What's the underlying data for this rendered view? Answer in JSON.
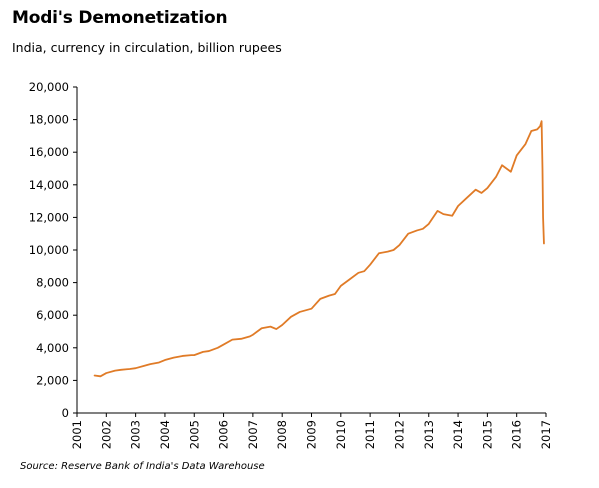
{
  "header": {
    "title": "Modi's Demonetization",
    "subtitle": "India, currency in circulation, billion rupees"
  },
  "footer": {
    "source": "Source: Reserve Bank of India's Data Warehouse"
  },
  "chart_data": {
    "type": "line",
    "title": "Modi's Demonetization",
    "subtitle": "India, currency in circulation, billion rupees",
    "xlabel": "",
    "ylabel": "",
    "xlim": [
      2001,
      2017
    ],
    "ylim": [
      0,
      20000
    ],
    "yticks": [
      0,
      2000,
      4000,
      6000,
      8000,
      10000,
      12000,
      14000,
      16000,
      18000,
      20000
    ],
    "ytick_labels": [
      "0",
      "2,000",
      "4,000",
      "6,000",
      "8,000",
      "10,000",
      "12,000",
      "14,000",
      "16,000",
      "18,000",
      "20,000"
    ],
    "xticks": [
      2001,
      2002,
      2003,
      2004,
      2005,
      2006,
      2007,
      2008,
      2009,
      2010,
      2011,
      2012,
      2013,
      2014,
      2015,
      2016,
      2017
    ],
    "xtick_labels": [
      "2001",
      "2002",
      "2003",
      "2004",
      "2005",
      "2006",
      "2007",
      "2008",
      "2009",
      "2010",
      "2011",
      "2012",
      "2013",
      "2014",
      "2015",
      "2016",
      "2017"
    ],
    "grid": false,
    "line_color": "#E07B27",
    "series": [
      {
        "x": [
          2001.6,
          2001.8,
          2002.0,
          2002.3,
          2002.5,
          2002.8,
          2003.0,
          2003.3,
          2003.5,
          2003.8,
          2004.0,
          2004.3,
          2004.6,
          2004.9,
          2005.0,
          2005.3,
          2005.5,
          2005.8,
          2006.0,
          2006.3,
          2006.6,
          2006.9,
          2007.0,
          2007.3,
          2007.6,
          2007.8,
          2008.0,
          2008.3,
          2008.6,
          2008.8,
          2009.0,
          2009.3,
          2009.6,
          2009.8,
          2010.0,
          2010.3,
          2010.6,
          2010.8,
          2011.0,
          2011.3,
          2011.6,
          2011.8,
          2012.0,
          2012.3,
          2012.6,
          2012.8,
          2013.0,
          2013.3,
          2013.5,
          2013.8,
          2014.0,
          2014.3,
          2014.6,
          2014.8,
          2015.0,
          2015.3,
          2015.5,
          2015.8,
          2016.0,
          2016.3,
          2016.5,
          2016.7,
          2016.8,
          2016.85,
          2016.88,
          2016.9,
          2016.93
        ],
        "y": [
          2300,
          2250,
          2450,
          2600,
          2650,
          2700,
          2750,
          2900,
          3000,
          3100,
          3250,
          3400,
          3500,
          3550,
          3550,
          3750,
          3800,
          4000,
          4200,
          4500,
          4550,
          4700,
          4800,
          5200,
          5300,
          5150,
          5400,
          5900,
          6200,
          6300,
          6400,
          7000,
          7200,
          7300,
          7800,
          8200,
          8600,
          8700,
          9100,
          9800,
          9900,
          10000,
          10300,
          11000,
          11200,
          11300,
          11600,
          12400,
          12200,
          12100,
          12700,
          13200,
          13700,
          13500,
          13800,
          14500,
          15200,
          14800,
          15800,
          16500,
          17300,
          17400,
          17600,
          17900,
          15000,
          12000,
          10400
        ]
      }
    ]
  }
}
